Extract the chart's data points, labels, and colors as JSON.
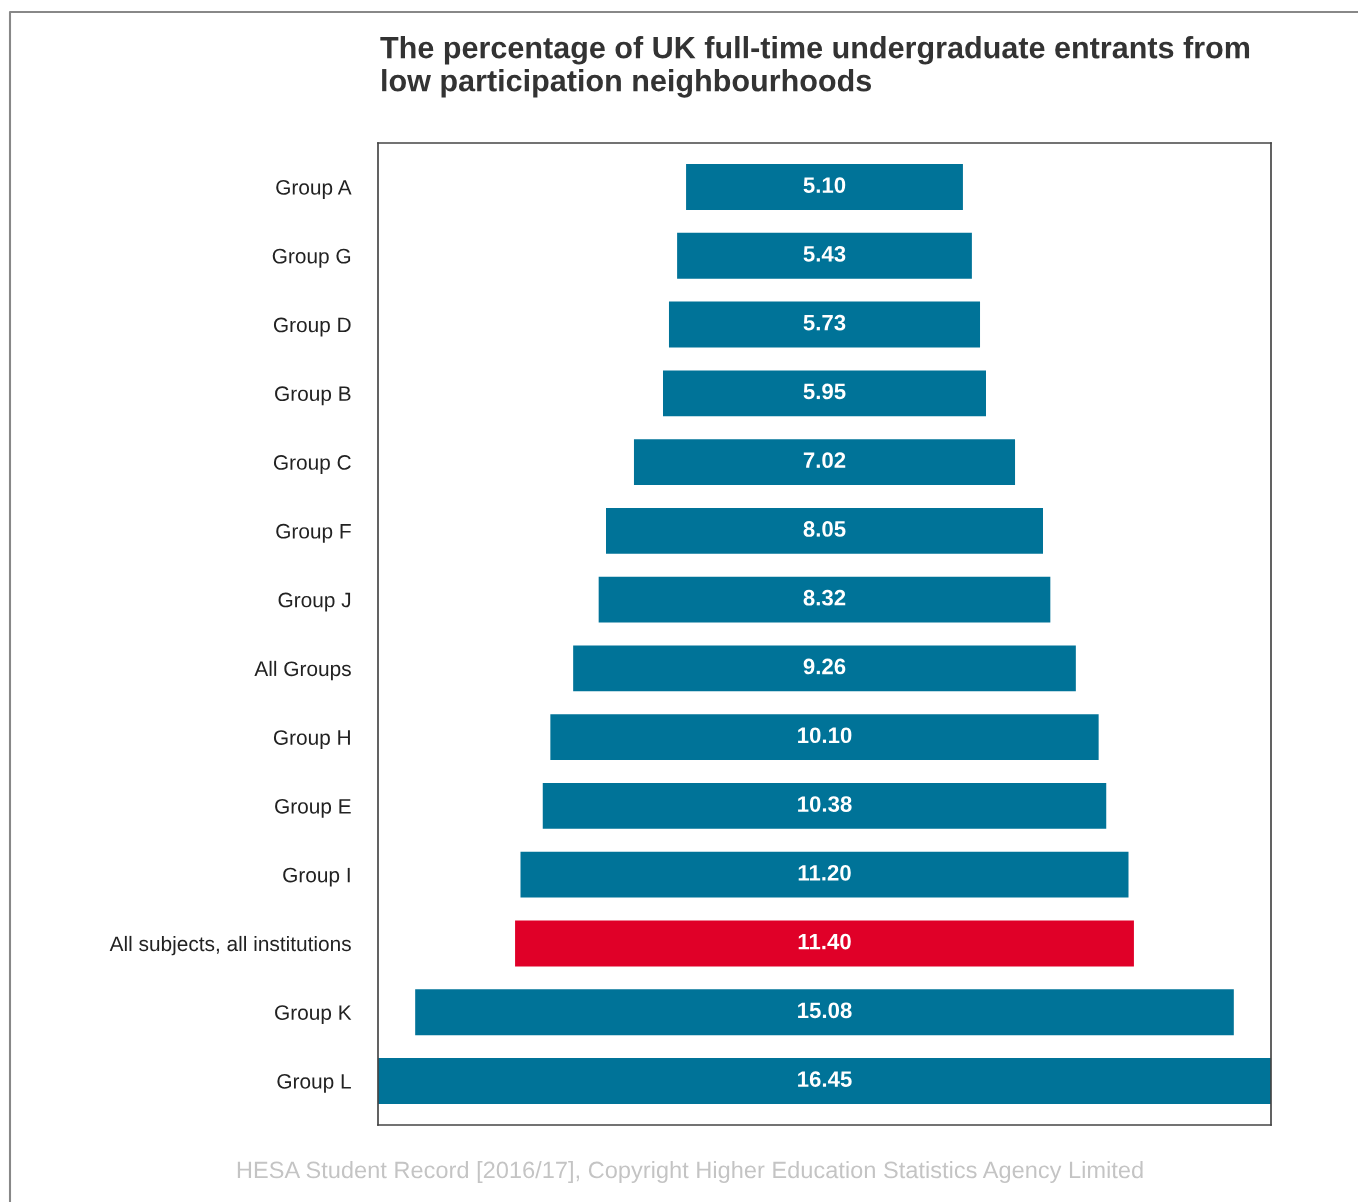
{
  "chart_data": {
    "type": "other",
    "title": "The percentage of UK full-time undergraduate entrants from\nlow participation neighbourhoods",
    "categories": [
      "Group A",
      "Group G",
      "Group D",
      "Group B",
      "Group C",
      "Group F",
      "Group J",
      "All Groups",
      "Group H",
      "Group E",
      "Group I",
      "All subjects, all institutions",
      "Group K",
      "Group L"
    ],
    "values": [
      5.1,
      5.43,
      5.73,
      5.95,
      7.02,
      8.05,
      8.32,
      9.26,
      10.1,
      10.38,
      11.2,
      11.4,
      15.08,
      16.45
    ],
    "value_labels": [
      "5.10",
      "5.43",
      "5.73",
      "5.95",
      "7.02",
      "8.05",
      "8.32",
      "9.26",
      "10.10",
      "10.38",
      "11.20",
      "11.40",
      "15.08",
      "16.45"
    ],
    "colors": [
      "#007398",
      "#007398",
      "#007398",
      "#007398",
      "#007398",
      "#007398",
      "#007398",
      "#007398",
      "#007398",
      "#007398",
      "#007398",
      "#e00028",
      "#007398",
      "#007398"
    ],
    "annotations": [
      "HESA Student Record [2016/17], Copyright Higher Education Statistics Agency Limited"
    ]
  }
}
